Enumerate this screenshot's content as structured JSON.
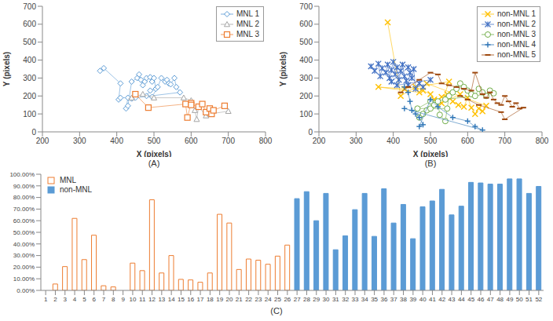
{
  "chart_data": [
    {
      "type": "scatter",
      "title": "(A)",
      "x_label": "X  (pixels)",
      "y_label": "Y (pixels)",
      "xlim": [
        200,
        800
      ],
      "xticks": [
        200,
        300,
        400,
        500,
        600,
        700,
        800
      ],
      "ylim": [
        0,
        700
      ],
      "yticks": [
        0,
        100,
        200,
        300,
        400,
        500,
        600,
        700
      ],
      "grid": false,
      "legend": "upper right",
      "series": [
        {
          "name": "MNL 1",
          "color": "#5b9bd5",
          "marker": "diamond",
          "line_style": "solid",
          "x": [
            355,
            365,
            410,
            405,
            410,
            430,
            425,
            430,
            440,
            455,
            460,
            465,
            470,
            475,
            480,
            490,
            495,
            500,
            505,
            490,
            480,
            495,
            510,
            520,
            530,
            535,
            540,
            545,
            555,
            560,
            570,
            450,
            440
          ],
          "y": [
            340,
            355,
            270,
            180,
            190,
            190,
            130,
            145,
            280,
            300,
            320,
            290,
            260,
            280,
            300,
            305,
            280,
            300,
            240,
            230,
            200,
            195,
            250,
            300,
            280,
            290,
            270,
            265,
            300,
            250,
            220,
            190,
            185
          ]
        },
        {
          "name": "MNL 2",
          "color": "#a5a5a5",
          "marker": "triangle",
          "line_style": "solid",
          "x": [
            440,
            470,
            500,
            580,
            600,
            610,
            615,
            620,
            640,
            650,
            700
          ],
          "y": [
            190,
            210,
            190,
            190,
            175,
            120,
            70,
            140,
            90,
            100,
            115
          ]
        },
        {
          "name": "MNL 3",
          "color": "#ed7d31",
          "marker": "square",
          "line_style": "solid",
          "x": [
            450,
            485,
            585,
            590,
            600,
            600,
            620,
            630,
            640,
            650,
            655,
            660,
            690
          ],
          "y": [
            210,
            135,
            155,
            80,
            160,
            150,
            140,
            155,
            110,
            130,
            100,
            120,
            145
          ]
        }
      ]
    },
    {
      "type": "scatter",
      "title": "(B)",
      "x_label": "X  (pixels)",
      "y_label": "Y (pixels)",
      "xlim": [
        200,
        800
      ],
      "xticks": [
        200,
        300,
        400,
        500,
        600,
        700,
        800
      ],
      "ylim": [
        0,
        700
      ],
      "yticks": [
        0,
        100,
        200,
        300,
        400,
        500,
        600,
        700
      ],
      "grid": false,
      "legend": "upper right",
      "series": [
        {
          "name": "non-MNL 1",
          "color": "#ffc000",
          "marker": "x",
          "line_style": "solid",
          "x": [
            385,
            420,
            460,
            480,
            500,
            510,
            520,
            530,
            545,
            560,
            575,
            590,
            600,
            610,
            620,
            630,
            640,
            650,
            490,
            470,
            360,
            430,
            550,
            530,
            580
          ],
          "y": [
            610,
            200,
            250,
            230,
            210,
            180,
            175,
            195,
            210,
            170,
            150,
            140,
            190,
            135,
            100,
            130,
            115,
            145,
            270,
            220,
            250,
            240,
            280,
            160,
            210
          ]
        },
        {
          "name": "non-MNL 2",
          "color": "#4472c4",
          "marker": "star",
          "line_style": "solid",
          "x": [
            340,
            350,
            360,
            365,
            370,
            380,
            385,
            390,
            395,
            400,
            405,
            410,
            415,
            420,
            425,
            430,
            435,
            440,
            445,
            450,
            455,
            460,
            470,
            480,
            500,
            410,
            395,
            440
          ],
          "y": [
            365,
            340,
            380,
            310,
            355,
            330,
            375,
            300,
            345,
            390,
            320,
            360,
            290,
            340,
            375,
            310,
            285,
            260,
            330,
            300,
            350,
            240,
            270,
            250,
            290,
            260,
            280,
            360
          ]
        },
        {
          "name": "non-MNL 3",
          "color": "#70ad47",
          "marker": "circle",
          "line_style": "solid",
          "x": [
            470,
            480,
            490,
            500,
            510,
            520,
            525,
            540,
            550,
            560,
            570,
            580,
            590,
            600,
            610,
            620,
            630,
            640,
            650,
            660,
            670,
            540,
            500,
            465,
            545
          ],
          "y": [
            80,
            100,
            120,
            130,
            150,
            170,
            95,
            60,
            200,
            220,
            240,
            270,
            250,
            230,
            210,
            200,
            240,
            220,
            200,
            230,
            215,
            180,
            170,
            130,
            130
          ]
        },
        {
          "name": "non-MNL 4",
          "color": "#2e75b6",
          "marker": "plus",
          "line_style": "solid",
          "x": [
            430,
            440,
            445,
            450,
            460,
            470,
            480,
            470,
            500,
            520,
            560,
            600,
            620,
            640,
            430
          ],
          "y": [
            250,
            220,
            170,
            120,
            100,
            80,
            40,
            30,
            180,
            140,
            80,
            60,
            30,
            10,
            130
          ]
        },
        {
          "name": "non-MNL 5",
          "color": "#9e480e",
          "marker": "dash",
          "line_style": "solid",
          "x": [
            420,
            440,
            470,
            500,
            520,
            530,
            550,
            570,
            590,
            610,
            620,
            640,
            650,
            660,
            670,
            680,
            690,
            700,
            710,
            720,
            730,
            740,
            750,
            700,
            690,
            630,
            600,
            580
          ],
          "y": [
            220,
            250,
            290,
            330,
            320,
            270,
            260,
            250,
            240,
            230,
            330,
            210,
            190,
            220,
            180,
            160,
            150,
            200,
            170,
            140,
            160,
            130,
            135,
            70,
            110,
            150,
            180,
            200
          ]
        }
      ]
    },
    {
      "type": "bar",
      "title": "(C)",
      "ylim": [
        0,
        100
      ],
      "grid": false,
      "legend": "upper left",
      "yticks": [
        {
          "value": 0,
          "label": "0.00%"
        },
        {
          "value": 10,
          "label": "10.00%"
        },
        {
          "value": 20,
          "label": "20.00%"
        },
        {
          "value": 30,
          "label": "30.00%"
        },
        {
          "value": 40,
          "label": "40.00%"
        },
        {
          "value": 50,
          "label": "50.00%"
        },
        {
          "value": 60,
          "label": "60.00%"
        },
        {
          "value": 70,
          "label": "70.00%"
        },
        {
          "value": 80,
          "label": "80.00%"
        },
        {
          "value": 90,
          "label": "90.00%"
        },
        {
          "value": 100,
          "label": "100.00%"
        }
      ],
      "categories": [
        "1",
        "2",
        "3",
        "4",
        "5",
        "6",
        "7",
        "8",
        "9",
        "10",
        "11",
        "12",
        "13",
        "14",
        "15",
        "16",
        "17",
        "18",
        "19",
        "20",
        "21",
        "22",
        "23",
        "24",
        "25",
        "26",
        "27",
        "28",
        "29",
        "30",
        "31",
        "32",
        "33",
        "34",
        "35",
        "36",
        "37",
        "38",
        "39",
        "40",
        "41",
        "42",
        "43",
        "44",
        "45",
        "46",
        "47",
        "48",
        "49",
        "50",
        "51",
        "52"
      ],
      "series": [
        {
          "name": "MNL",
          "color": "#ed7d31",
          "values": [
            0,
            5.5,
            20.5,
            62,
            26.5,
            47.5,
            4,
            3,
            0,
            23.5,
            17,
            78,
            15,
            30,
            9.5,
            9,
            7,
            15,
            65.5,
            58,
            18,
            27,
            26,
            22.5,
            29.5,
            39,
            null,
            null,
            null,
            null,
            null,
            null,
            null,
            null,
            null,
            null,
            null,
            null,
            null,
            null,
            null,
            null,
            null,
            null,
            null,
            null,
            null,
            null,
            null,
            null,
            null,
            null
          ]
        },
        {
          "name": "non-MNL",
          "color": "#5b9bd5",
          "values": [
            null,
            null,
            null,
            null,
            null,
            null,
            null,
            null,
            null,
            null,
            null,
            null,
            null,
            null,
            null,
            null,
            null,
            null,
            null,
            null,
            null,
            null,
            null,
            null,
            null,
            null,
            79,
            85,
            60,
            83.5,
            35,
            47,
            69.5,
            83.5,
            46.5,
            87.5,
            58,
            74,
            44.5,
            72,
            77,
            87,
            65,
            72.5,
            93,
            92.5,
            91.5,
            91.5,
            96,
            96,
            83.5,
            89.5
          ]
        }
      ]
    }
  ]
}
